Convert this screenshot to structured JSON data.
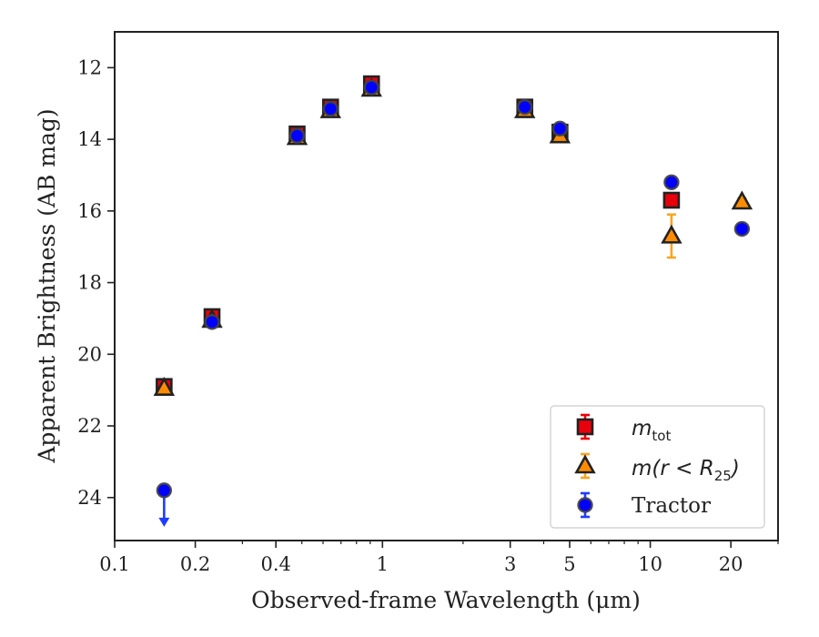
{
  "chart_data": {
    "type": "scatter",
    "xlabel": "Observed-frame Wavelength (μm)",
    "ylabel": "Apparent Brightness (AB mag)",
    "xscale": "log",
    "xlim": [
      0.1,
      30
    ],
    "ylim": [
      25.2,
      11.0
    ],
    "y_inverted": true,
    "x_ticks": [
      0.1,
      0.2,
      0.4,
      1,
      3,
      5,
      10,
      20
    ],
    "x_tick_labels": [
      "0.1",
      "0.2",
      "0.4",
      "1",
      "3",
      "5",
      "10",
      "20"
    ],
    "y_ticks": [
      12,
      14,
      16,
      18,
      20,
      22,
      24
    ],
    "y_tick_labels": [
      "12",
      "14",
      "16",
      "18",
      "20",
      "22",
      "24"
    ],
    "grid": false,
    "legend_position": "bottom-right",
    "series": [
      {
        "name": "m_tot",
        "legend_main": "m",
        "legend_sub": "tot",
        "marker": "square",
        "color": "#e8000b",
        "error_color": "#e8000b",
        "points": [
          {
            "x": 0.153,
            "y": 20.9,
            "err": 0.1
          },
          {
            "x": 0.231,
            "y": 18.95,
            "err": 0.1
          },
          {
            "x": 0.48,
            "y": 13.85,
            "err": 0.05
          },
          {
            "x": 0.64,
            "y": 13.1,
            "err": 0.05
          },
          {
            "x": 0.91,
            "y": 12.45,
            "err": 0.05
          },
          {
            "x": 3.4,
            "y": 13.1,
            "err": 0.05
          },
          {
            "x": 4.6,
            "y": 13.8,
            "err": 0.05
          },
          {
            "x": 12.0,
            "y": 15.7,
            "err": 0.1
          }
        ]
      },
      {
        "name": "m(r < R_25)",
        "legend_main": "m(r < R",
        "legend_sub": "25",
        "legend_tail": ")",
        "marker": "triangle",
        "color": "#ff8c00",
        "error_color": "#f5a623",
        "points": [
          {
            "x": 0.153,
            "y": 20.95,
            "err": 0.05
          },
          {
            "x": 0.231,
            "y": 19.05,
            "err": 0.05
          },
          {
            "x": 0.48,
            "y": 13.95,
            "err": 0.05
          },
          {
            "x": 0.64,
            "y": 13.2,
            "err": 0.05
          },
          {
            "x": 0.91,
            "y": 12.6,
            "err": 0.05
          },
          {
            "x": 3.4,
            "y": 13.2,
            "err": 0.05
          },
          {
            "x": 4.6,
            "y": 13.9,
            "err": 0.05
          },
          {
            "x": 12.0,
            "y": 16.7,
            "err": 0.6
          },
          {
            "x": 22.0,
            "y": 15.75,
            "err": 0.1
          }
        ]
      },
      {
        "name": "Tractor",
        "legend_main": "Tractor",
        "marker": "circle",
        "color": "#0000ff",
        "error_color": "#1f3cff",
        "points": [
          {
            "x": 0.153,
            "y": 23.8,
            "upper_limit": true
          },
          {
            "x": 0.231,
            "y": 19.1,
            "err": 0.05
          },
          {
            "x": 0.48,
            "y": 13.9,
            "err": 0.05
          },
          {
            "x": 0.64,
            "y": 13.15,
            "err": 0.05
          },
          {
            "x": 0.91,
            "y": 12.55,
            "err": 0.05
          },
          {
            "x": 3.4,
            "y": 13.1,
            "err": 0.05
          },
          {
            "x": 4.6,
            "y": 13.7,
            "err": 0.05
          },
          {
            "x": 12.0,
            "y": 15.2,
            "err": 0.05
          },
          {
            "x": 22.0,
            "y": 16.5,
            "err": 0.05
          }
        ]
      }
    ]
  }
}
